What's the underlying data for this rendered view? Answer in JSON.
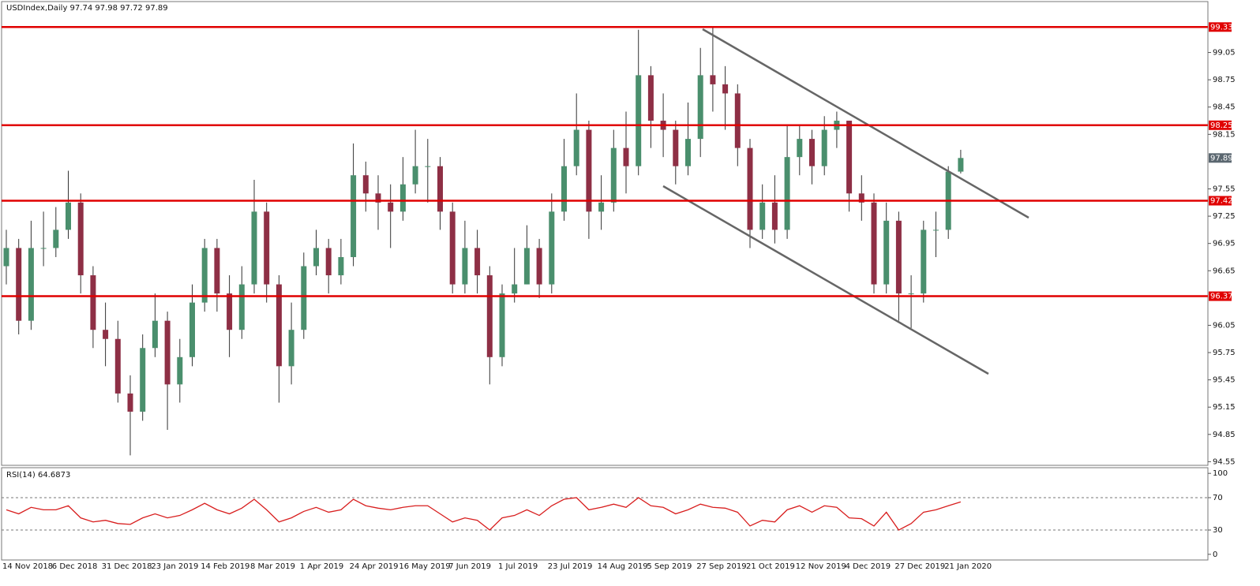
{
  "chart_data": [
    {
      "type": "candlestick",
      "title": "USDIndex,Daily  97.74 97.98 97.72 97.89",
      "up_color": "#4a8f6d",
      "down_color": "#8e2f45",
      "wick_color": "#333333",
      "open": [
        96.7,
        96.9,
        96.1,
        96.9,
        96.9,
        97.1,
        97.4,
        96.6,
        96.0,
        95.9,
        95.3,
        95.1,
        95.8,
        96.1,
        95.4,
        95.7,
        96.3,
        96.9,
        96.4,
        96.0,
        96.5,
        97.3,
        96.5,
        95.6,
        96.0,
        96.7,
        96.9,
        96.6,
        96.8,
        97.7,
        97.5,
        97.4,
        97.3,
        97.6,
        97.8,
        97.8,
        97.3,
        96.5,
        96.9,
        96.6,
        95.7,
        96.4,
        96.5,
        96.9,
        96.5,
        97.3,
        97.8,
        98.2,
        97.3,
        97.4,
        98.0,
        97.8,
        98.8,
        98.3,
        98.2,
        97.8,
        98.1,
        98.8,
        98.7,
        98.6,
        98.0,
        97.1,
        97.4,
        97.1,
        97.9,
        98.1,
        97.8,
        98.2,
        98.3,
        97.5,
        97.4,
        96.5,
        97.2,
        96.4,
        96.4,
        97.1,
        97.1,
        97.74
      ],
      "high": [
        97.1,
        97.0,
        97.2,
        97.3,
        97.35,
        97.75,
        97.5,
        96.7,
        96.3,
        96.1,
        95.5,
        95.95,
        96.4,
        96.2,
        95.9,
        96.5,
        97.0,
        97.0,
        96.6,
        96.7,
        97.65,
        97.4,
        96.6,
        96.3,
        96.85,
        97.1,
        97.0,
        97.0,
        98.05,
        97.85,
        97.7,
        97.6,
        97.9,
        98.2,
        98.1,
        97.9,
        97.4,
        97.2,
        97.1,
        96.7,
        96.5,
        96.9,
        97.15,
        97.0,
        97.5,
        98.1,
        98.6,
        98.3,
        97.7,
        98.2,
        98.4,
        99.3,
        98.9,
        98.6,
        98.3,
        98.5,
        99.1,
        99.33,
        98.9,
        98.7,
        98.1,
        97.6,
        97.7,
        98.25,
        98.25,
        98.2,
        98.35,
        98.4,
        98.3,
        97.7,
        97.5,
        97.4,
        97.3,
        96.6,
        97.2,
        97.3,
        97.8,
        97.98
      ],
      "low": [
        96.5,
        95.95,
        96.0,
        96.7,
        96.8,
        97.0,
        96.4,
        95.8,
        95.6,
        95.2,
        94.62,
        95.0,
        95.7,
        94.9,
        95.2,
        95.6,
        96.2,
        96.2,
        95.7,
        95.9,
        96.4,
        96.3,
        95.2,
        95.4,
        95.9,
        96.6,
        96.4,
        96.5,
        96.7,
        97.3,
        97.1,
        96.9,
        97.2,
        97.5,
        97.4,
        97.1,
        96.4,
        96.4,
        96.4,
        95.4,
        95.6,
        96.3,
        96.5,
        96.35,
        96.4,
        97.2,
        97.7,
        97.0,
        97.1,
        97.3,
        97.5,
        97.7,
        98.0,
        97.9,
        97.6,
        97.7,
        97.9,
        98.4,
        98.2,
        97.8,
        96.9,
        97.0,
        96.95,
        97.0,
        97.7,
        97.6,
        97.7,
        98.0,
        97.3,
        97.2,
        96.4,
        96.4,
        96.1,
        96.02,
        96.3,
        96.8,
        97.0,
        97.72
      ],
      "close": [
        96.9,
        96.1,
        96.9,
        96.9,
        97.1,
        97.4,
        96.6,
        96.0,
        95.9,
        95.3,
        95.1,
        95.8,
        96.1,
        95.4,
        95.7,
        96.3,
        96.9,
        96.4,
        96.0,
        96.5,
        97.3,
        96.5,
        95.6,
        96.0,
        96.7,
        96.9,
        96.6,
        96.8,
        97.7,
        97.5,
        97.4,
        97.3,
        97.6,
        97.8,
        97.8,
        97.3,
        96.5,
        96.9,
        96.6,
        95.7,
        96.4,
        96.5,
        96.9,
        96.5,
        97.3,
        97.8,
        98.2,
        97.3,
        97.4,
        98.0,
        97.8,
        98.8,
        98.3,
        98.2,
        97.8,
        98.1,
        98.8,
        98.7,
        98.6,
        98.0,
        97.1,
        97.4,
        97.1,
        97.9,
        98.1,
        97.8,
        98.2,
        98.3,
        97.5,
        97.4,
        96.5,
        97.2,
        96.4,
        96.4,
        97.1,
        97.1,
        97.74,
        97.89
      ],
      "xticks": [
        "14 Nov 2018",
        "6 Dec 2018",
        "31 Dec 2018",
        "23 Jan 2019",
        "14 Feb 2019",
        "8 Mar 2019",
        "1 Apr 2019",
        "24 Apr 2019",
        "16 May 2019",
        "7 Jun 2019",
        "1 Jul 2019",
        "23 Jul 2019",
        "14 Aug 2019",
        "5 Sep 2019",
        "27 Sep 2019",
        "21 Oct 2019",
        "12 Nov 2019",
        "4 Dec 2019",
        "27 Dec 2019",
        "21 Jan 2020"
      ],
      "ylim": [
        94.51,
        99.61
      ],
      "yticks": [
        94.55,
        94.85,
        95.15,
        95.45,
        95.75,
        96.05,
        96.65,
        96.95,
        97.25,
        97.55,
        98.15,
        98.45,
        98.75,
        99.05
      ],
      "levels": [
        99.33,
        98.25,
        97.42,
        96.37
      ],
      "level_color": "#e00000",
      "last_color": "#5b6770"
    },
    {
      "type": "line",
      "title": "RSI(14) 64.6873",
      "color": "#d81e1e",
      "values": [
        55,
        50,
        58,
        55,
        55,
        60,
        45,
        40,
        42,
        38,
        37,
        45,
        50,
        45,
        48,
        55,
        63,
        55,
        50,
        57,
        68,
        55,
        40,
        45,
        53,
        58,
        52,
        55,
        68,
        60,
        57,
        55,
        58,
        60,
        60,
        50,
        40,
        45,
        42,
        30,
        45,
        48,
        55,
        48,
        60,
        68,
        70,
        55,
        58,
        62,
        58,
        70,
        60,
        58,
        50,
        55,
        62,
        58,
        57,
        52,
        35,
        42,
        40,
        55,
        60,
        52,
        60,
        58,
        45,
        44,
        35,
        52,
        30,
        38,
        52,
        55,
        60,
        64.6873
      ],
      "ylim": [
        -7,
        107
      ],
      "yticks": [
        0,
        30,
        70,
        100
      ],
      "levels": [
        70,
        30
      ]
    }
  ]
}
